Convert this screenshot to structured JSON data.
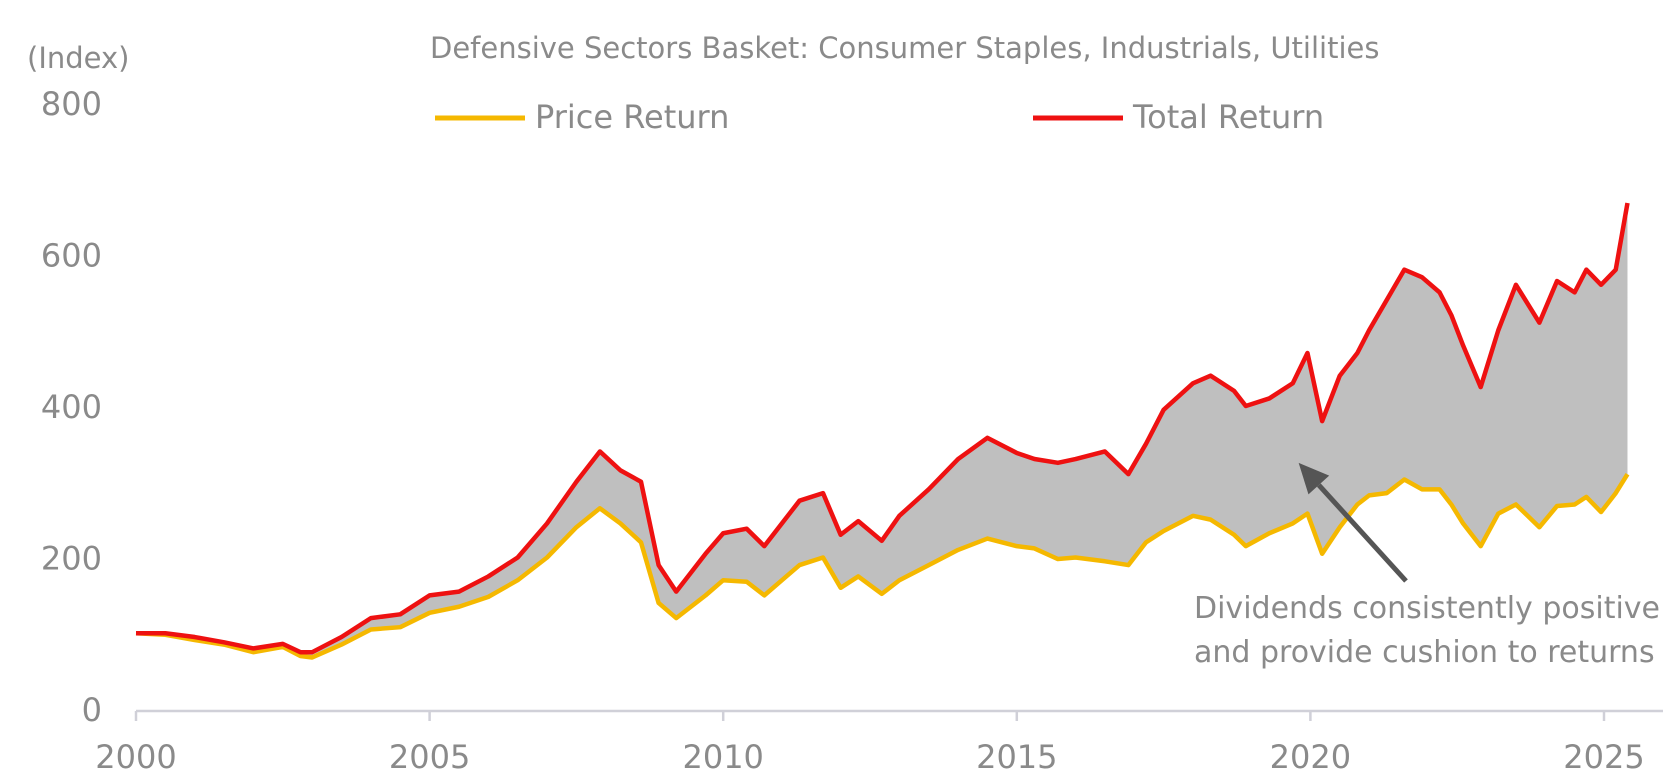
{
  "chart_data": {
    "type": "area",
    "title": "Defensive Sectors Basket: Consumer Staples, Industrials, Utilities",
    "ylabel": "(Index)",
    "xlabel": "",
    "xlim": [
      2000,
      2026
    ],
    "ylim": [
      0,
      800
    ],
    "x_ticks": [
      2000,
      2005,
      2010,
      2015,
      2020,
      2025
    ],
    "y_ticks": [
      0,
      200,
      400,
      600,
      800
    ],
    "grid": false,
    "legend": "top",
    "fill_between_series": "#bfbfbf",
    "series": [
      {
        "name": "Price Return",
        "color": "#f5b800",
        "x": [
          2000.0,
          2000.5,
          2001.0,
          2001.5,
          2002.0,
          2002.5,
          2002.8,
          2003.0,
          2003.5,
          2004.0,
          2004.5,
          2005.0,
          2005.5,
          2006.0,
          2006.5,
          2007.0,
          2007.5,
          2007.9,
          2008.25,
          2008.6,
          2008.9,
          2009.2,
          2009.7,
          2010.0,
          2010.4,
          2010.7,
          2011.0,
          2011.3,
          2011.7,
          2012.0,
          2012.3,
          2012.7,
          2013.0,
          2013.5,
          2014.0,
          2014.5,
          2015.0,
          2015.3,
          2015.7,
          2016.0,
          2016.5,
          2016.9,
          2017.2,
          2017.5,
          2018.0,
          2018.3,
          2018.7,
          2018.9,
          2019.3,
          2019.7,
          2019.95,
          2020.2,
          2020.5,
          2020.8,
          2021.0,
          2021.3,
          2021.6,
          2021.9,
          2022.2,
          2022.4,
          2022.6,
          2022.9,
          2023.2,
          2023.5,
          2023.9,
          2024.2,
          2024.5,
          2024.7,
          2024.95,
          2025.2,
          2025.4
        ],
        "values": [
          100,
          98,
          91,
          85,
          75,
          82,
          70,
          68,
          85,
          105,
          108,
          127,
          135,
          148,
          170,
          200,
          240,
          265,
          245,
          220,
          140,
          120,
          150,
          170,
          168,
          150,
          170,
          190,
          200,
          160,
          175,
          152,
          170,
          190,
          210,
          225,
          215,
          212,
          198,
          200,
          195,
          190,
          220,
          235,
          255,
          250,
          230,
          215,
          232,
          245,
          258,
          205,
          240,
          270,
          282,
          285,
          303,
          290,
          290,
          270,
          245,
          215,
          258,
          270,
          240,
          268,
          270,
          280,
          260,
          285,
          310
        ]
      },
      {
        "name": "Total Return",
        "color": "#ee1111",
        "x": [
          2000.0,
          2000.5,
          2001.0,
          2001.5,
          2002.0,
          2002.5,
          2002.8,
          2003.0,
          2003.5,
          2004.0,
          2004.5,
          2005.0,
          2005.5,
          2006.0,
          2006.5,
          2007.0,
          2007.5,
          2007.9,
          2008.25,
          2008.6,
          2008.9,
          2009.2,
          2009.7,
          2010.0,
          2010.4,
          2010.7,
          2011.0,
          2011.3,
          2011.7,
          2012.0,
          2012.3,
          2012.7,
          2013.0,
          2013.5,
          2014.0,
          2014.5,
          2015.0,
          2015.3,
          2015.7,
          2016.0,
          2016.5,
          2016.9,
          2017.2,
          2017.5,
          2018.0,
          2018.3,
          2018.7,
          2018.9,
          2019.3,
          2019.7,
          2019.95,
          2020.2,
          2020.5,
          2020.8,
          2021.0,
          2021.3,
          2021.6,
          2021.9,
          2022.2,
          2022.4,
          2022.6,
          2022.9,
          2023.2,
          2023.5,
          2023.9,
          2024.2,
          2024.5,
          2024.7,
          2024.95,
          2025.2,
          2025.4
        ],
        "values": [
          100,
          100,
          95,
          88,
          80,
          86,
          75,
          75,
          95,
          120,
          125,
          150,
          155,
          175,
          200,
          245,
          300,
          340,
          315,
          300,
          190,
          155,
          205,
          232,
          238,
          215,
          245,
          275,
          285,
          230,
          248,
          222,
          255,
          290,
          330,
          358,
          338,
          330,
          325,
          330,
          340,
          310,
          350,
          395,
          430,
          440,
          420,
          400,
          410,
          430,
          470,
          380,
          440,
          470,
          500,
          540,
          580,
          570,
          550,
          520,
          480,
          425,
          500,
          560,
          510,
          565,
          550,
          580,
          560,
          580,
          668
        ]
      }
    ],
    "annotations": [
      {
        "text_lines": [
          "Dividends consistently positive",
          "and provide cushion to returns"
        ],
        "arrow_to": [
          2019.8,
          325
        ]
      }
    ]
  }
}
